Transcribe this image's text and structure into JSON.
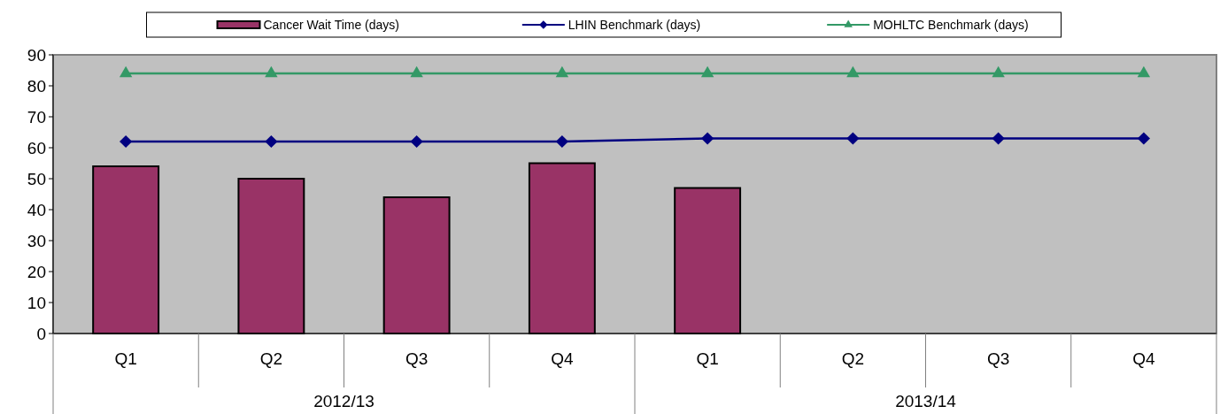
{
  "chart_data": {
    "type": "bar",
    "categories": [
      "Q1",
      "Q2",
      "Q3",
      "Q4",
      "Q1",
      "Q2",
      "Q3",
      "Q4"
    ],
    "series": [
      {
        "name": "Cancer Wait Time (days)",
        "color": "#993366",
        "values": [
          54,
          50,
          44,
          55,
          47,
          null,
          null,
          null
        ]
      },
      {
        "name": "LHIN Benchmark (days)",
        "type": "line",
        "color": "#000080",
        "marker": "diamond",
        "values": [
          62,
          62,
          62,
          62,
          63,
          63,
          63,
          63
        ]
      },
      {
        "name": "MOHLTC Benchmark (days)",
        "type": "line",
        "color": "#339966",
        "marker": "triangle",
        "values": [
          84,
          84,
          84,
          84,
          84,
          84,
          84,
          84
        ]
      }
    ],
    "annotations": [
      "2012/13",
      "2013/14"
    ],
    "ylim": [
      0,
      90
    ],
    "yticks": [
      0,
      10,
      20,
      30,
      40,
      50,
      60,
      70,
      80,
      90
    ],
    "grid": false,
    "legend": "top"
  }
}
